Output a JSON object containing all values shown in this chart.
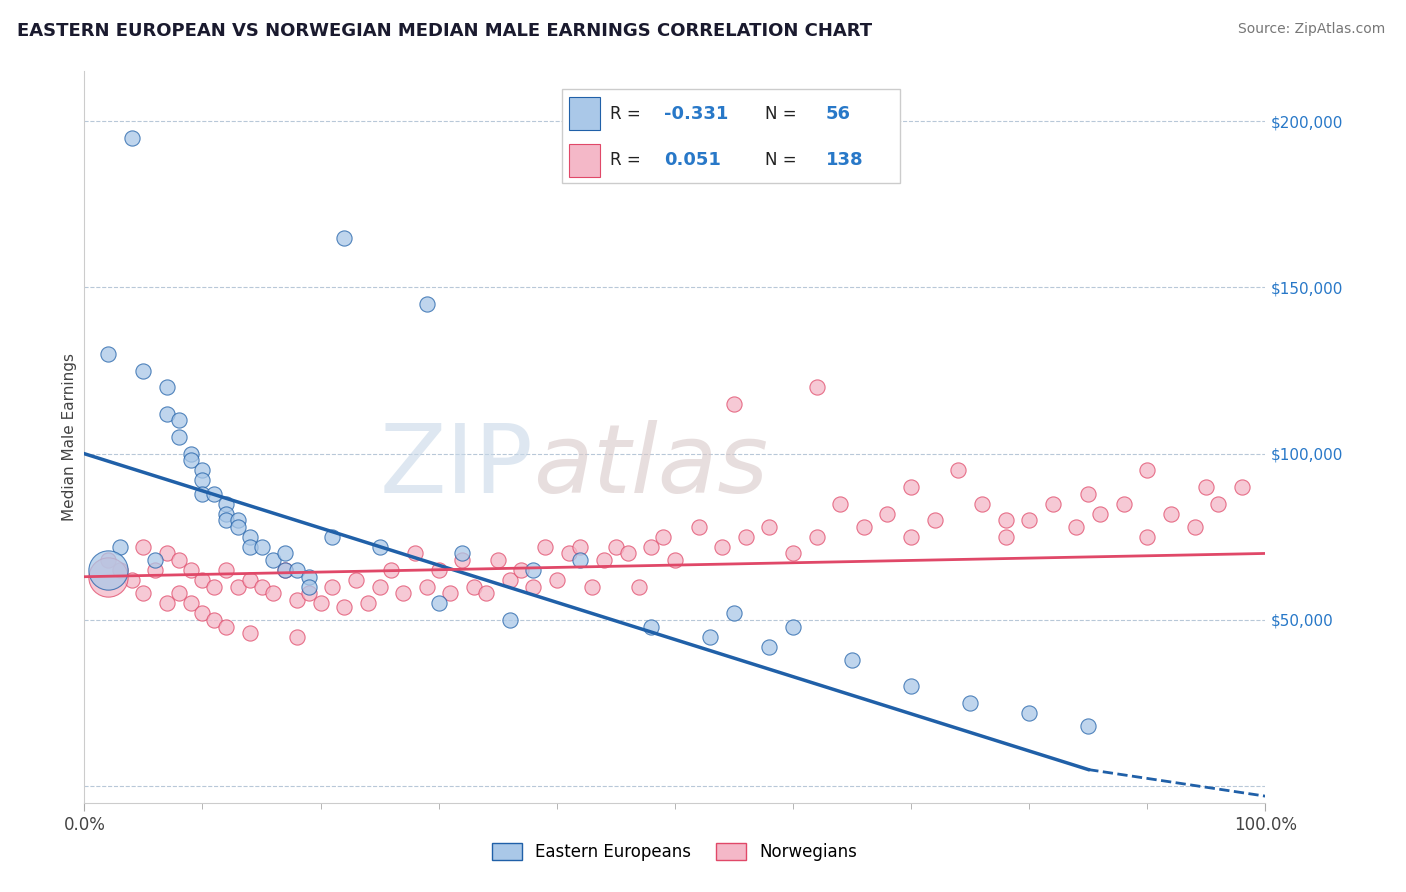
{
  "title": "EASTERN EUROPEAN VS NORWEGIAN MEDIAN MALE EARNINGS CORRELATION CHART",
  "source": "Source: ZipAtlas.com",
  "ylabel": "Median Male Earnings",
  "watermark_zip": "ZIP",
  "watermark_atlas": "atlas",
  "blue_R": "-0.331",
  "blue_N": "56",
  "pink_R": "0.051",
  "pink_N": "138",
  "blue_color": "#aac8e8",
  "pink_color": "#f4b8c8",
  "blue_line_color": "#2060a8",
  "pink_line_color": "#e04868",
  "right_yticks": [
    0,
    50000,
    100000,
    150000,
    200000
  ],
  "right_ylabels": [
    "",
    "$50,000",
    "$100,000",
    "$150,000",
    "$200,000"
  ],
  "xlim": [
    0,
    100
  ],
  "ylim": [
    -5000,
    215000
  ],
  "blue_line_x0": 0,
  "blue_line_y0": 100000,
  "blue_line_x1": 85,
  "blue_line_y1": 5000,
  "blue_dash_x0": 85,
  "blue_dash_y0": 5000,
  "blue_dash_x1": 100,
  "blue_dash_y1": -3000,
  "pink_line_x0": 0,
  "pink_line_y0": 63000,
  "pink_line_x1": 100,
  "pink_line_y1": 70000,
  "legend_blue_label": "Eastern Europeans",
  "legend_pink_label": "Norwegians",
  "blue_points_x": [
    4,
    22,
    29,
    2,
    5,
    7,
    7,
    8,
    8,
    9,
    9,
    10,
    10,
    10,
    11,
    12,
    12,
    12,
    13,
    13,
    14,
    14,
    15,
    16,
    17,
    17,
    18,
    19,
    19,
    3,
    6,
    21,
    25,
    32,
    38,
    42,
    55,
    60,
    30,
    36,
    48,
    53,
    58,
    65,
    70,
    75,
    80,
    85
  ],
  "blue_points_y": [
    195000,
    165000,
    145000,
    130000,
    125000,
    120000,
    112000,
    110000,
    105000,
    100000,
    98000,
    95000,
    92000,
    88000,
    88000,
    85000,
    82000,
    80000,
    80000,
    78000,
    75000,
    72000,
    72000,
    68000,
    70000,
    65000,
    65000,
    63000,
    60000,
    72000,
    68000,
    75000,
    72000,
    70000,
    65000,
    68000,
    52000,
    48000,
    55000,
    50000,
    48000,
    45000,
    42000,
    38000,
    30000,
    25000,
    22000,
    18000
  ],
  "blue_points_sizes": [
    120,
    80,
    60,
    50,
    50,
    50,
    50,
    50,
    50,
    50,
    50,
    50,
    50,
    50,
    50,
    50,
    50,
    50,
    50,
    50,
    50,
    50,
    50,
    50,
    50,
    50,
    50,
    50,
    50,
    50,
    50,
    50,
    50,
    50,
    50,
    50,
    50,
    50,
    50,
    50,
    50,
    50,
    50,
    50,
    50,
    50,
    50,
    50
  ],
  "pink_points_x": [
    2,
    3,
    4,
    5,
    5,
    6,
    7,
    7,
    8,
    8,
    9,
    9,
    10,
    10,
    11,
    11,
    12,
    12,
    13,
    14,
    14,
    15,
    16,
    17,
    18,
    18,
    19,
    20,
    21,
    22,
    23,
    24,
    25,
    26,
    27,
    28,
    29,
    30,
    31,
    32,
    33,
    34,
    35,
    36,
    37,
    38,
    39,
    40,
    41,
    42,
    43,
    44,
    45,
    46,
    47,
    48,
    49,
    50,
    52,
    54,
    56,
    58,
    60,
    62,
    64,
    66,
    68,
    70,
    72,
    74,
    76,
    78,
    80,
    82,
    84,
    86,
    88,
    90,
    92,
    94,
    96,
    98,
    55,
    62,
    70,
    78,
    85,
    90,
    95
  ],
  "pink_points_y": [
    68000,
    65000,
    62000,
    72000,
    58000,
    65000,
    70000,
    55000,
    68000,
    58000,
    65000,
    55000,
    62000,
    52000,
    60000,
    50000,
    65000,
    48000,
    60000,
    62000,
    46000,
    60000,
    58000,
    65000,
    56000,
    45000,
    58000,
    55000,
    60000,
    54000,
    62000,
    55000,
    60000,
    65000,
    58000,
    70000,
    60000,
    65000,
    58000,
    68000,
    60000,
    58000,
    68000,
    62000,
    65000,
    60000,
    72000,
    62000,
    70000,
    72000,
    60000,
    68000,
    72000,
    70000,
    60000,
    72000,
    75000,
    68000,
    78000,
    72000,
    75000,
    78000,
    70000,
    75000,
    85000,
    78000,
    82000,
    75000,
    80000,
    95000,
    85000,
    75000,
    80000,
    85000,
    78000,
    82000,
    85000,
    75000,
    82000,
    78000,
    85000,
    90000,
    115000,
    120000,
    90000,
    80000,
    88000,
    95000,
    90000
  ],
  "pink_points_sizes": [
    120,
    80,
    60,
    60,
    60,
    60,
    60,
    60,
    60,
    60,
    60,
    60,
    60,
    60,
    60,
    60,
    60,
    60,
    60,
    60,
    60,
    60,
    60,
    60,
    60,
    60,
    60,
    60,
    60,
    60,
    60,
    60,
    60,
    60,
    60,
    60,
    60,
    60,
    60,
    60,
    60,
    60,
    60,
    60,
    60,
    60,
    60,
    60,
    60,
    60,
    60,
    60,
    60,
    60,
    60,
    60,
    60,
    60,
    60,
    60,
    60,
    60,
    60,
    60,
    60,
    60,
    60,
    60,
    60,
    60,
    60,
    60,
    60,
    60,
    60,
    60,
    60,
    60,
    60,
    60,
    60,
    60,
    60,
    60,
    60,
    60,
    60,
    60,
    60
  ]
}
